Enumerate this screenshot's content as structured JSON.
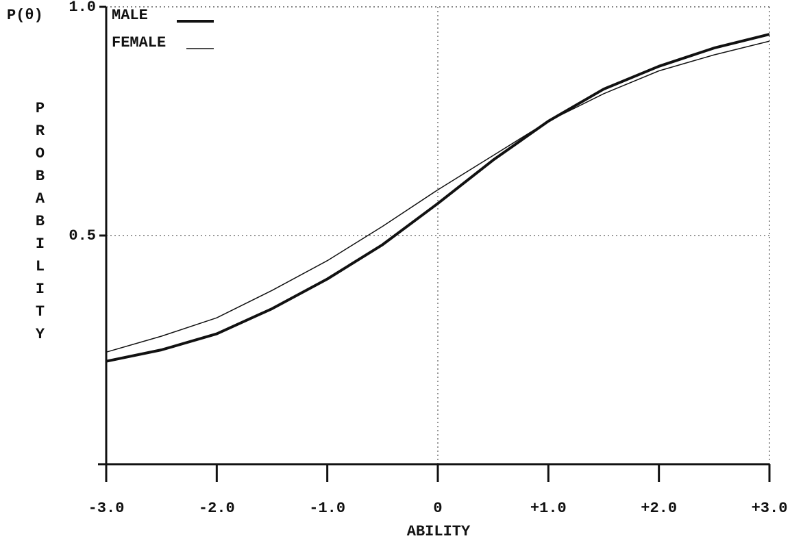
{
  "chart_data": {
    "type": "line",
    "y_axis_title": "P(θ)",
    "y_label": "PROBABILITY",
    "x_label": "ABILITY",
    "x": [
      -3,
      -2.5,
      -2,
      -1.5,
      -1,
      -0.5,
      0,
      0.5,
      1,
      1.5,
      2,
      2.5,
      3
    ],
    "series": [
      {
        "name": "MALE",
        "color": "#111111",
        "values": [
          0.225,
          0.25,
          0.285,
          0.34,
          0.405,
          0.48,
          0.57,
          0.665,
          0.75,
          0.82,
          0.87,
          0.91,
          0.94
        ]
      },
      {
        "name": "FEMALE",
        "color": "#111111",
        "values": [
          0.245,
          0.28,
          0.32,
          0.38,
          0.445,
          0.52,
          0.6,
          0.675,
          0.75,
          0.81,
          0.86,
          0.895,
          0.925
        ]
      }
    ],
    "xlim": [
      -3,
      3
    ],
    "xticks": [
      {
        "value": -3,
        "label": "-3.0"
      },
      {
        "value": -2,
        "label": "-2.0"
      },
      {
        "value": -1,
        "label": "-1.0"
      },
      0,
      {
        "value": 1,
        "label": "+1.0"
      },
      {
        "value": 2,
        "label": "+2.0"
      },
      {
        "value": 3,
        "label": "+3.0"
      }
    ],
    "ylim": [
      0,
      1
    ],
    "yticks": [
      0.5,
      {
        "value": 1,
        "label": "1.0"
      }
    ],
    "grid": true,
    "legend": "upper left"
  }
}
